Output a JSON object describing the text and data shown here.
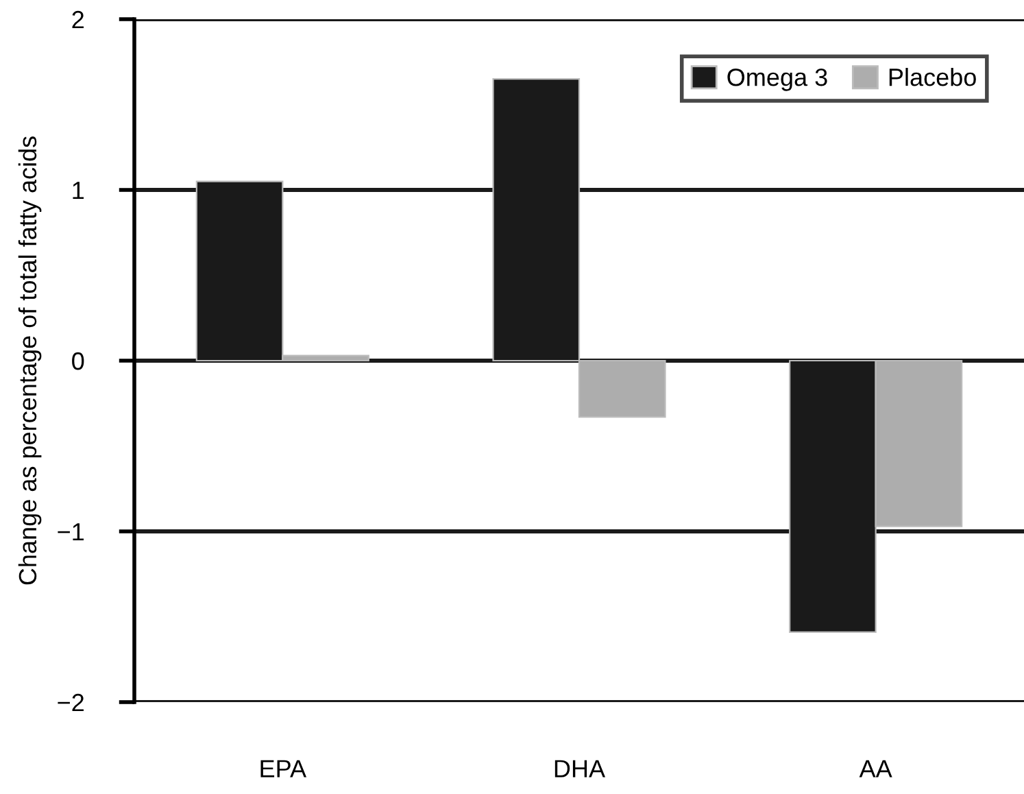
{
  "chart_data": {
    "type": "bar",
    "ylabel": "Change as percentage of total fatty acids",
    "categories": [
      "EPA",
      "DHA",
      "AA"
    ],
    "series": [
      {
        "name": "Omega 3",
        "color": "#1a1a1a",
        "values": [
          1.05,
          1.65,
          -1.59
        ]
      },
      {
        "name": "Placebo",
        "color": "#adadad",
        "values": [
          0.03,
          -0.33,
          -0.97
        ]
      }
    ],
    "ylim": [
      -2,
      2
    ],
    "yticks": [
      {
        "value": -2,
        "label": "−2"
      },
      {
        "value": -1,
        "label": "−1"
      },
      0,
      1,
      2
    ],
    "grid": "y",
    "legend": "top right"
  }
}
